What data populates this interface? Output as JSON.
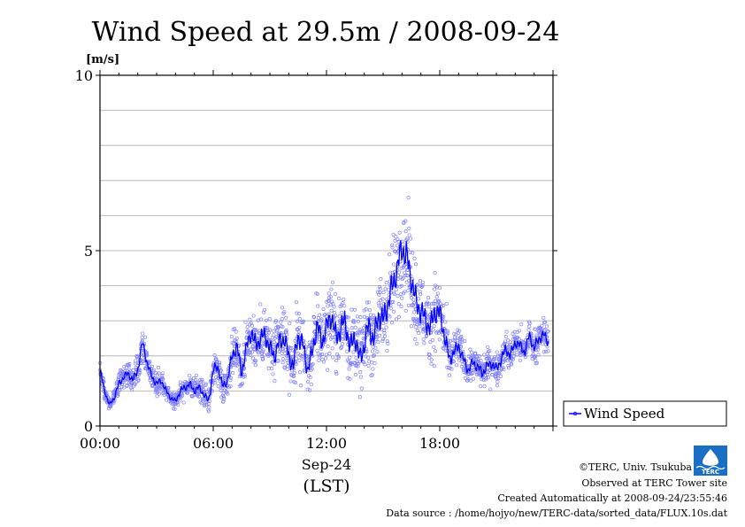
{
  "chart_data": {
    "type": "scatter",
    "title": "Wind Speed at 29.5m / 2008-09-24",
    "y_unit": "[m/s]",
    "ylim": [
      0,
      10
    ],
    "y_ticks": [
      "0",
      "5",
      "10"
    ],
    "y_tick_values": [
      0,
      5,
      10
    ],
    "y_grid_values": [
      1,
      2,
      3,
      4,
      5,
      6,
      7,
      8,
      9
    ],
    "xlim_hours": [
      0,
      24
    ],
    "x_ticks": [
      "00:00",
      "06:00",
      "12:00",
      "18:00"
    ],
    "x_tick_hours": [
      0,
      6,
      12,
      18
    ],
    "date_label": "Sep-24",
    "time_zone_label": "(LST)",
    "grid": true,
    "legend_position": "right, below plot",
    "colors": {
      "points": "#8080ff",
      "line": "#0000ff",
      "grid": "#aaaaaa"
    },
    "series": [
      {
        "name": "Wind Speed",
        "style": "10-second samples shown as hollow circles, running mean shown as line",
        "hours": [
          0.0,
          0.25,
          0.5,
          0.75,
          1.0,
          1.25,
          1.5,
          1.75,
          2.0,
          2.25,
          2.5,
          2.75,
          3.0,
          3.25,
          3.5,
          3.75,
          4.0,
          4.25,
          4.5,
          4.75,
          5.0,
          5.25,
          5.5,
          5.75,
          6.0,
          6.25,
          6.5,
          6.75,
          7.0,
          7.25,
          7.5,
          7.75,
          8.0,
          8.25,
          8.5,
          8.75,
          9.0,
          9.25,
          9.5,
          9.75,
          10.0,
          10.25,
          10.5,
          10.75,
          11.0,
          11.25,
          11.5,
          11.75,
          12.0,
          12.25,
          12.5,
          12.75,
          13.0,
          13.25,
          13.5,
          13.75,
          14.0,
          14.25,
          14.5,
          14.75,
          15.0,
          15.25,
          15.5,
          15.75,
          16.0,
          16.25,
          16.5,
          16.75,
          17.0,
          17.25,
          17.5,
          17.75,
          18.0,
          18.25,
          18.5,
          18.75,
          19.0,
          19.25,
          19.5,
          19.75,
          20.0,
          20.25,
          20.5,
          20.75,
          21.0,
          21.25,
          21.5,
          21.75,
          22.0,
          22.25,
          22.5,
          22.75,
          23.0,
          23.25,
          23.5,
          23.75
        ],
        "mean": [
          1.6,
          1.0,
          0.6,
          0.8,
          1.2,
          1.4,
          1.5,
          1.3,
          1.6,
          2.4,
          1.8,
          1.4,
          1.2,
          1.3,
          1.0,
          0.8,
          0.7,
          1.0,
          1.1,
          1.2,
          1.0,
          1.1,
          0.9,
          0.7,
          1.6,
          1.7,
          1.1,
          1.3,
          2.0,
          2.3,
          1.5,
          2.2,
          2.7,
          2.3,
          2.5,
          2.6,
          2.2,
          2.0,
          2.4,
          2.5,
          2.0,
          1.7,
          2.6,
          2.3,
          1.6,
          2.1,
          2.9,
          2.4,
          2.8,
          3.2,
          2.5,
          2.8,
          3.0,
          2.2,
          2.6,
          1.9,
          2.3,
          2.9,
          2.4,
          3.2,
          3.0,
          3.5,
          4.0,
          4.5,
          5.1,
          4.8,
          4.2,
          3.5,
          3.3,
          3.0,
          2.8,
          3.3,
          3.2,
          2.6,
          1.9,
          2.1,
          2.3,
          1.9,
          1.6,
          1.8,
          1.7,
          1.5,
          1.7,
          1.8,
          1.6,
          1.9,
          2.2,
          2.0,
          2.4,
          2.3,
          2.1,
          2.6,
          2.2,
          2.5,
          2.6,
          2.4
        ],
        "spread": [
          0.3,
          0.3,
          0.2,
          0.3,
          0.4,
          0.4,
          0.4,
          0.4,
          0.5,
          0.6,
          0.5,
          0.4,
          0.4,
          0.4,
          0.3,
          0.3,
          0.3,
          0.4,
          0.4,
          0.4,
          0.4,
          0.4,
          0.4,
          0.4,
          0.6,
          0.6,
          0.5,
          0.5,
          0.8,
          0.9,
          0.8,
          0.9,
          1.0,
          1.0,
          1.0,
          1.0,
          1.0,
          1.0,
          1.1,
          1.1,
          1.0,
          1.0,
          1.2,
          1.1,
          1.0,
          1.1,
          1.3,
          1.2,
          1.3,
          1.4,
          1.3,
          1.3,
          1.4,
          1.2,
          1.3,
          1.2,
          1.3,
          1.4,
          1.3,
          1.4,
          1.4,
          1.5,
          1.6,
          1.7,
          1.8,
          1.8,
          1.6,
          1.5,
          1.4,
          1.3,
          1.3,
          1.4,
          1.3,
          1.2,
          0.8,
          0.7,
          0.7,
          0.6,
          0.6,
          0.6,
          0.6,
          0.6,
          0.6,
          0.6,
          0.6,
          0.6,
          0.6,
          0.6,
          0.6,
          0.6,
          0.6,
          0.6,
          0.6,
          0.6,
          0.6,
          0.6
        ]
      }
    ]
  },
  "legend": {
    "label": "Wind Speed"
  },
  "credits": {
    "logo_text": "TERC",
    "copyright": "©TERC, Univ. Tsukuba",
    "observed": "Observed at TERC Tower site",
    "created": "Created Automatically at 2008-09-24/23:55:46",
    "source": "Data source : /home/hojyo/new/TERC-data/sorted_data/FLUX.10s.dat"
  }
}
